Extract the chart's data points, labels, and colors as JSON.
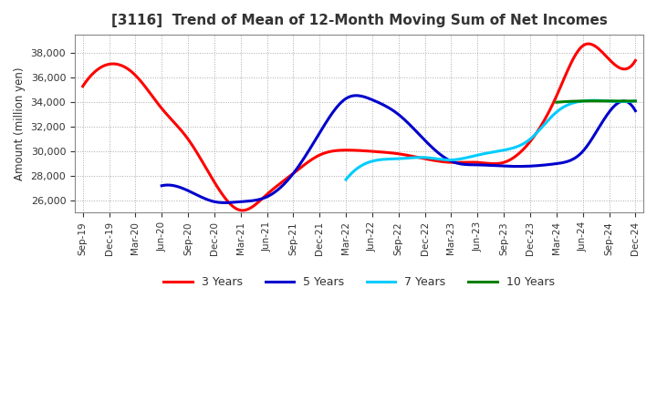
{
  "title": "[3116]  Trend of Mean of 12-Month Moving Sum of Net Incomes",
  "ylabel": "Amount (million yen)",
  "bg_color": "#ffffff",
  "plot_bg_color": "#ffffff",
  "x_labels": [
    "Sep-19",
    "Dec-19",
    "Mar-20",
    "Jun-20",
    "Sep-20",
    "Dec-20",
    "Mar-21",
    "Jun-21",
    "Sep-21",
    "Dec-21",
    "Mar-22",
    "Jun-22",
    "Sep-22",
    "Dec-22",
    "Mar-23",
    "Jun-23",
    "Sep-23",
    "Dec-23",
    "Mar-24",
    "Jun-24",
    "Sep-24",
    "Dec-24"
  ],
  "series": {
    "3 Years": {
      "color": "#ff0000",
      "data_x": [
        0,
        1,
        2,
        3,
        4,
        5,
        6,
        7,
        8,
        9,
        10,
        11,
        12,
        13,
        14,
        15,
        16,
        17,
        18,
        19,
        20,
        21
      ],
      "data_y": [
        35300,
        37100,
        36200,
        33500,
        31000,
        27500,
        25200,
        26500,
        28200,
        29700,
        30100,
        30000,
        29800,
        29400,
        29100,
        29100,
        29100,
        30800,
        34500,
        38600,
        37500,
        37400
      ]
    },
    "5 Years": {
      "color": "#0000cd",
      "data_x": [
        0,
        1,
        2,
        3,
        4,
        5,
        6,
        7,
        8,
        9,
        10,
        11,
        12,
        13,
        14,
        15,
        16,
        17,
        18,
        19,
        20,
        21
      ],
      "data_y": [
        null,
        null,
        null,
        27200,
        26800,
        25900,
        25900,
        26300,
        28200,
        31500,
        34300,
        34200,
        33000,
        30900,
        29200,
        28900,
        28800,
        28800,
        29000,
        30000,
        33200,
        33300
      ]
    },
    "7 Years": {
      "color": "#00ccff",
      "data_x": [
        10,
        11,
        12,
        13,
        14,
        15,
        16,
        17,
        18,
        19,
        20,
        21
      ],
      "data_y": [
        27700,
        29200,
        29400,
        29500,
        29300,
        29700,
        30100,
        31000,
        33200,
        34100,
        34100,
        34100
      ]
    },
    "10 Years": {
      "color": "#008000",
      "data_x": [
        18,
        19,
        20,
        21
      ],
      "data_y": [
        34000,
        34100,
        34100,
        34100
      ]
    }
  },
  "ylim": [
    25000,
    39500
  ],
  "yticks": [
    26000,
    28000,
    30000,
    32000,
    34000,
    36000,
    38000
  ],
  "legend_labels": [
    "3 Years",
    "5 Years",
    "7 Years",
    "10 Years"
  ],
  "legend_colors": [
    "#ff0000",
    "#0000cd",
    "#00ccff",
    "#008000"
  ],
  "linewidth": 2.2
}
